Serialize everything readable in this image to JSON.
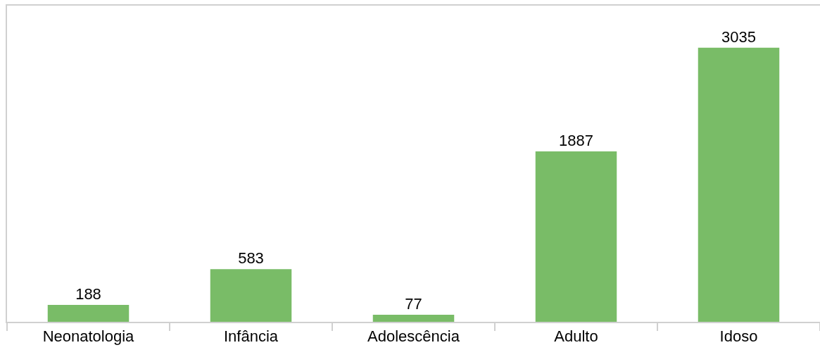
{
  "chart_data": {
    "type": "bar",
    "categories": [
      "Neonatologia",
      "Infância",
      "Adolescência",
      "Adulto",
      "Idoso"
    ],
    "values": [
      188,
      583,
      77,
      1887,
      3035
    ],
    "color": "#79bc67",
    "ylim": [
      0,
      3500
    ],
    "tick_labels": "x",
    "data_labels": true
  }
}
